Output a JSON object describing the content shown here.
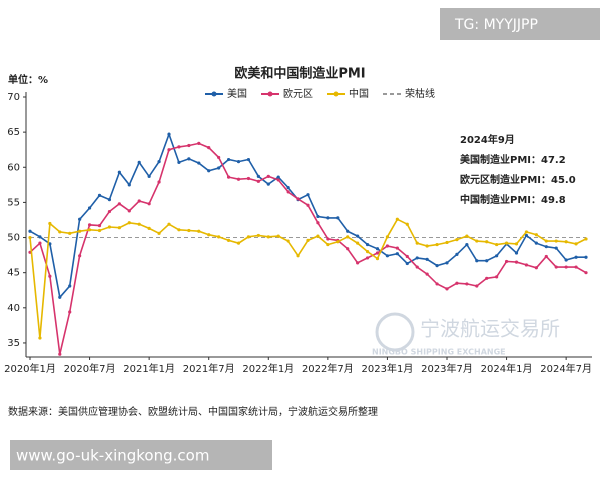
{
  "watermark_top": "TG: MYYJJPP",
  "watermark_bottom": "www.go-uk-xingkong.com",
  "logo": {
    "name": "宁波航运交易所",
    "subtitle": "NINGBO SHIPPING EXCHANGE"
  },
  "chart_data": {
    "type": "line",
    "title": "欧美和中国制造业PMI",
    "unit_label": "单位：%",
    "source": "数据来源：美国供应管理协会、欧盟统计局、中国国家统计局，宁波航运交易所整理",
    "categories": [
      "2020年1月",
      null,
      null,
      null,
      null,
      null,
      "2020年7月",
      null,
      null,
      null,
      null,
      null,
      "2021年1月",
      null,
      null,
      null,
      null,
      null,
      "2021年7月",
      null,
      null,
      null,
      null,
      null,
      "2022年1月",
      null,
      null,
      null,
      null,
      null,
      "2022年7月",
      null,
      null,
      null,
      null,
      null,
      "2023年1月",
      null,
      null,
      null,
      null,
      null,
      "2023年7月",
      null,
      null,
      null,
      null,
      null,
      "2024年1月",
      null,
      null,
      null,
      null,
      null,
      "2024年7月",
      null,
      null
    ],
    "series": [
      {
        "name": "美国",
        "color": "#1f5fa8",
        "values": [
          50.9,
          50.1,
          49.1,
          41.5,
          43.1,
          52.6,
          54.2,
          56.0,
          55.4,
          59.3,
          57.5,
          60.7,
          58.7,
          60.8,
          64.7,
          60.7,
          61.2,
          60.6,
          59.5,
          59.9,
          61.1,
          60.8,
          61.1,
          58.7,
          57.6,
          58.6,
          57.1,
          55.4,
          56.1,
          53.0,
          52.8,
          52.8,
          50.9,
          50.2,
          49.0,
          48.4,
          47.4,
          47.7,
          46.3,
          47.1,
          46.9,
          46.0,
          46.4,
          47.6,
          49.0,
          46.7,
          46.7,
          47.4,
          49.1,
          47.8,
          50.3,
          49.2,
          48.7,
          48.5,
          46.8,
          47.2,
          47.2
        ]
      },
      {
        "name": "欧元区",
        "color": "#d6336c",
        "values": [
          47.9,
          49.2,
          44.5,
          33.4,
          39.4,
          47.4,
          51.8,
          51.7,
          53.7,
          54.8,
          53.8,
          55.2,
          54.8,
          57.9,
          62.5,
          62.9,
          63.1,
          63.4,
          62.8,
          61.4,
          58.6,
          58.3,
          58.4,
          58.0,
          58.7,
          58.2,
          56.5,
          55.5,
          54.6,
          52.1,
          49.8,
          49.6,
          48.4,
          46.4,
          47.1,
          47.8,
          48.8,
          48.5,
          47.3,
          45.8,
          44.8,
          43.4,
          42.7,
          43.5,
          43.4,
          43.1,
          44.2,
          44.4,
          46.6,
          46.5,
          46.1,
          45.7,
          47.3,
          45.8,
          45.8,
          45.8,
          45.0
        ]
      },
      {
        "name": "中国",
        "color": "#e6b800",
        "values": [
          50.0,
          35.7,
          52.0,
          50.8,
          50.6,
          50.9,
          51.1,
          51.0,
          51.5,
          51.4,
          52.1,
          51.9,
          51.3,
          50.6,
          51.9,
          51.1,
          51.0,
          50.9,
          50.4,
          50.1,
          49.6,
          49.2,
          50.1,
          50.3,
          50.1,
          50.2,
          49.5,
          47.4,
          49.6,
          50.2,
          49.0,
          49.4,
          50.1,
          49.2,
          48.0,
          47.0,
          50.1,
          52.6,
          51.9,
          49.2,
          48.8,
          49.0,
          49.3,
          49.7,
          50.2,
          49.5,
          49.4,
          49.0,
          49.2,
          49.1,
          50.8,
          50.4,
          49.5,
          49.5,
          49.4,
          49.1,
          49.8
        ]
      }
    ],
    "threshold": {
      "name": "荣枯线",
      "value": 50,
      "color": "#999999"
    },
    "ylim": [
      33,
      70
    ],
    "yticks": [
      35,
      40,
      45,
      50,
      55,
      60,
      65,
      70
    ],
    "annotations": [
      "2024年9月",
      "美国制造业PMI：47.2",
      "欧元区制造业PMI：45.0",
      "中国制造业PMI：49.8"
    ]
  }
}
